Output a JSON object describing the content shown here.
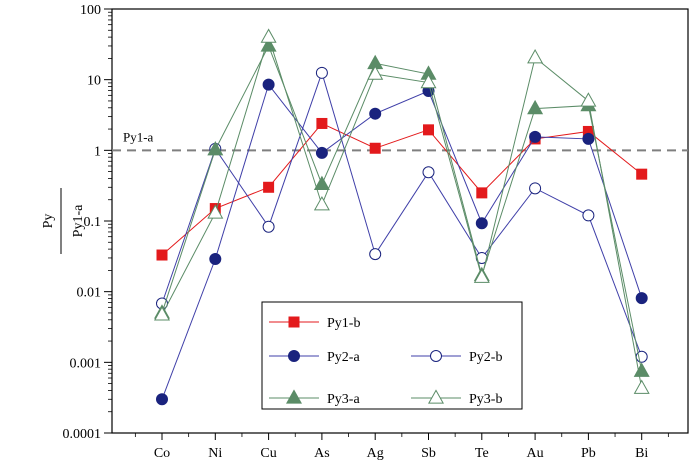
{
  "chart_data": {
    "type": "line",
    "title": "",
    "xlabel": "",
    "ylabel": {
      "numerator": "Py",
      "denominator": "Py1-a"
    },
    "y_scale": "log",
    "ylim": [
      0.0001,
      100
    ],
    "y_ticks": [
      "0.0001",
      "0.001",
      "0.01",
      "0.1",
      "1",
      "10",
      "100"
    ],
    "categories": [
      "Co",
      "Ni",
      "Cu",
      "As",
      "Ag",
      "Sb",
      "Te",
      "Au",
      "Pb",
      "Bi"
    ],
    "reference_line": {
      "label": "Py1-a",
      "value": 1,
      "style": "dashed",
      "color": "#7f7f7f"
    },
    "grid": false,
    "legend_position": "bottom-center",
    "series": [
      {
        "name": "Py1-b",
        "marker": "square",
        "filled": true,
        "color": "#e31a1c",
        "line_color": "#e31a1c",
        "values": [
          0.033,
          0.15,
          0.3,
          2.4,
          1.07,
          1.95,
          0.25,
          1.45,
          1.85,
          0.46
        ]
      },
      {
        "name": "Py2-a",
        "marker": "circle",
        "filled": true,
        "color": "#1a237e",
        "line_color": "#3f3fa8",
        "values": [
          0.0003,
          0.029,
          8.5,
          0.92,
          3.3,
          6.9,
          0.093,
          1.55,
          1.45,
          0.0081
        ]
      },
      {
        "name": "Py2-b",
        "marker": "circle",
        "filled": false,
        "color": "#1a237e",
        "line_color": "#3f3fa8",
        "values": [
          0.0068,
          1.05,
          0.083,
          12.5,
          0.034,
          0.49,
          0.03,
          0.29,
          0.12,
          0.0012
        ]
      },
      {
        "name": "Py3-a",
        "marker": "triangle",
        "filled": true,
        "color": "#5b8c67",
        "line_color": "#5b8c67",
        "values": [
          0.005,
          1.02,
          30,
          0.33,
          17,
          12,
          0.017,
          3.9,
          4.3,
          0.00075
        ]
      },
      {
        "name": "Py3-b",
        "marker": "triangle",
        "filled": false,
        "color": "#5b8c67",
        "line_color": "#5b8c67",
        "values": [
          0.0047,
          0.13,
          40,
          0.17,
          12,
          9.1,
          0.016,
          20.5,
          5,
          0.00043
        ]
      }
    ],
    "legend": {
      "rows": [
        [
          "Py1-b"
        ],
        [
          "Py2-a",
          "Py2-b"
        ],
        [
          "Py3-a",
          "Py3-b"
        ]
      ]
    }
  }
}
